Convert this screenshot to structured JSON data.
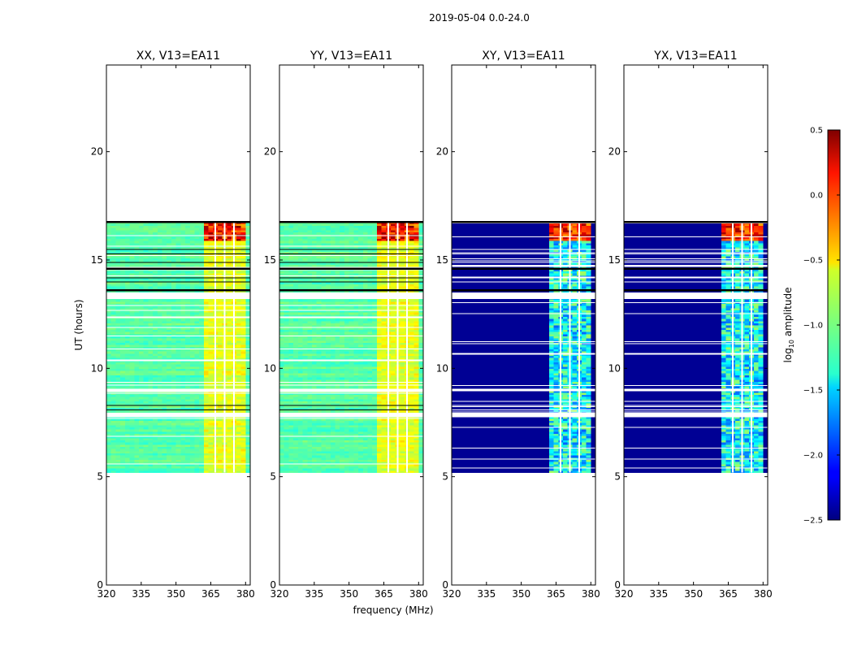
{
  "figure": {
    "suptitle": "2019-05-04 0.0-24.0",
    "ylabel": "UT (hours)",
    "xlabel": "frequency (MHz)"
  },
  "chart_data": {
    "type": "heatmap",
    "x_range": [
      320,
      382
    ],
    "y_range": [
      0,
      24
    ],
    "x_ticks": [
      320,
      335,
      350,
      365,
      380
    ],
    "y_ticks": [
      0,
      5,
      10,
      15,
      20
    ],
    "panels": [
      {
        "name": "xx",
        "title": "XX, V13=EA11",
        "style": "parallel"
      },
      {
        "name": "yy",
        "title": "YY, V13=EA11",
        "style": "parallel"
      },
      {
        "name": "xy",
        "title": "XY, V13=EA11",
        "style": "cross"
      },
      {
        "name": "yx",
        "title": "YX, V13=EA11",
        "style": "cross"
      }
    ],
    "data_time_range": [
      5.2,
      16.8
    ],
    "black_gap_bands": [
      [
        13.55,
        13.65
      ],
      [
        14.55,
        14.65
      ],
      [
        16.7,
        16.8
      ]
    ],
    "white_gap_bands": [
      [
        7.75,
        7.95
      ],
      [
        13.2,
        13.5
      ],
      [
        8.95,
        9.05
      ]
    ],
    "high_freq_block_range": [
      363,
      380
    ],
    "flagged_channels": [
      367,
      371,
      375
    ],
    "colorbar": {
      "label": "log10 amplitude",
      "label_main": "log",
      "label_sub": "10",
      "label_rest": " amplitude",
      "range": [
        -2.5,
        0.5
      ],
      "ticks": [
        "0.5",
        "0.0",
        "−0.5",
        "−1.0",
        "−1.5",
        "−2.0",
        "−2.5"
      ],
      "tick_values": [
        0.5,
        0.0,
        -0.5,
        -1.0,
        -1.5,
        -2.0,
        -2.5
      ]
    }
  }
}
